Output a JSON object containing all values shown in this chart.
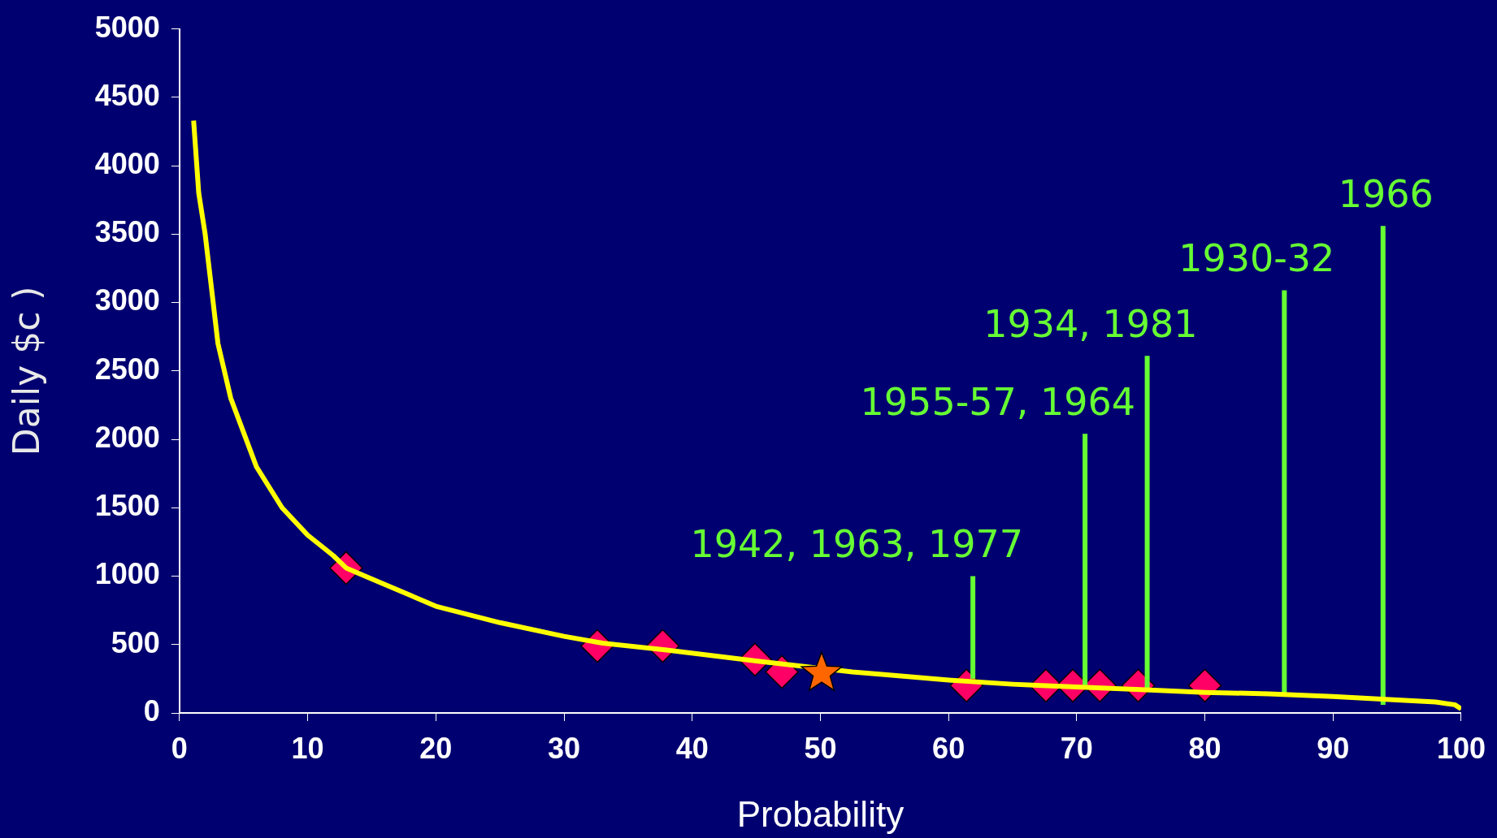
{
  "chart_data": {
    "type": "line",
    "xlabel": "Probability",
    "ylabel": "Daily $c )",
    "xlim": [
      0,
      100
    ],
    "ylim": [
      0,
      5000
    ],
    "xticks": [
      0,
      10,
      20,
      30,
      40,
      50,
      60,
      70,
      80,
      90,
      100
    ],
    "yticks": [
      0,
      500,
      1000,
      1500,
      2000,
      2500,
      3000,
      3500,
      4000,
      4500,
      5000
    ],
    "grid": false,
    "legend": false,
    "series": [
      {
        "color": "#ffff00",
        "marker": "none",
        "x": [
          1.1,
          1.5,
          2,
          2.5,
          3,
          4,
          5,
          6,
          7,
          8,
          10,
          12,
          13,
          15,
          18,
          20,
          25,
          30,
          33,
          38,
          45,
          52.5,
          55,
          60,
          65,
          70,
          75,
          80,
          85,
          90,
          95,
          98,
          99.5,
          100
        ],
        "values": [
          4330,
          3800,
          3500,
          3100,
          2700,
          2300,
          2050,
          1800,
          1650,
          1500,
          1300,
          1150,
          1060,
          980,
          860,
          780,
          660,
          560,
          510,
          460,
          380,
          300,
          280,
          240,
          210,
          190,
          170,
          150,
          140,
          120,
          95,
          80,
          60,
          30
        ]
      },
      {
        "type": "scatter",
        "color": "#ff0066",
        "marker": "diamond",
        "x": [
          13.0,
          32.6,
          37.7,
          44.9,
          47.0,
          61.4,
          67.6,
          69.7,
          71.8,
          74.8,
          80.0
        ],
        "values": [
          1060,
          490,
          490,
          390,
          300,
          200,
          200,
          200,
          200,
          200,
          200
        ]
      },
      {
        "type": "scatter",
        "color": "#ff6600",
        "marker": "star",
        "x": [
          50.1
        ],
        "values": [
          290
        ]
      },
      {
        "type": "line",
        "color": "#66ff33",
        "marker": "none",
        "x": [
          61.9,
          61.9
        ],
        "values": [
          250,
          1000
        ]
      },
      {
        "type": "line",
        "color": "#66ff33",
        "marker": "none",
        "x": [
          70.65,
          70.65
        ],
        "values": [
          190,
          2040
        ]
      },
      {
        "type": "line",
        "color": "#66ff33",
        "marker": "none",
        "x": [
          75.5,
          75.5
        ],
        "values": [
          170,
          2610
        ]
      },
      {
        "type": "line",
        "color": "#66ff33",
        "marker": "none",
        "x": [
          86.2,
          86.2
        ],
        "values": [
          140,
          3090
        ]
      },
      {
        "type": "line",
        "color": "#66ff33",
        "marker": "none",
        "x": [
          93.9,
          93.9
        ],
        "values": [
          60,
          3560
        ]
      }
    ],
    "annotations": [
      {
        "text": "1942, 1963, 1977",
        "x": 61.9,
        "y": 1000
      },
      {
        "text": "1955-57, 1964",
        "x": 70.65,
        "y": 2040
      },
      {
        "text": "1934, 1981",
        "x": 75.5,
        "y": 2610
      },
      {
        "text": "1930-32",
        "x": 86.2,
        "y": 3090
      },
      {
        "text": "1966",
        "x": 93.9,
        "y": 3560
      }
    ]
  }
}
